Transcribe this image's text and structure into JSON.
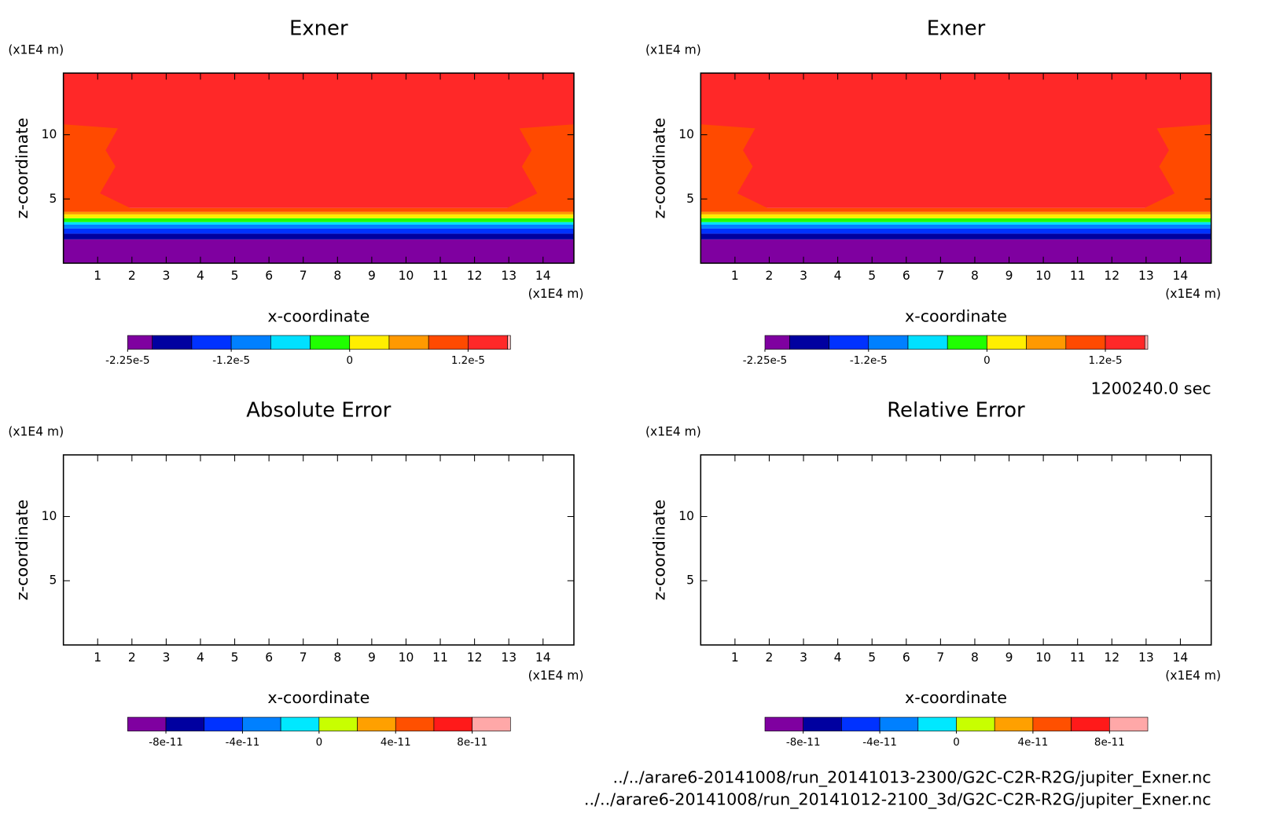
{
  "chart_data": [
    {
      "type": "contour",
      "title": "Exner",
      "x_label": "x-coordinate",
      "y_label": "z-coordinate",
      "y_unit": "(x1E4 m)",
      "x_unit": "(x1E4 m)",
      "xlim": [
        0,
        14.9
      ],
      "ylim": [
        0,
        14.8
      ],
      "xticks": [
        1,
        2,
        3,
        4,
        5,
        6,
        7,
        8,
        9,
        10,
        11,
        12,
        13,
        14
      ],
      "yticks": [
        5,
        10
      ],
      "colors": [
        "#7f00a0",
        "#0000a0",
        "#0032ff",
        "#0080ff",
        "#00e0ff",
        "#20ff00",
        "#ffee00",
        "#ff9900",
        "#ff4a00",
        "#ff2828",
        "#ffb0b0"
      ],
      "levels": [
        -2.25e-05,
        -2e-05,
        -1.6e-05,
        -1.2e-05,
        -8e-06,
        -4e-06,
        0,
        4e-06,
        8e-06,
        1.2e-05,
        1.6e-05,
        1.63e-05
      ],
      "colorbar_ticks": [
        {
          "value": -2.25e-05,
          "label": "-2.25e-5"
        },
        {
          "value": -1.2e-05,
          "label": "-1.2e-5"
        },
        0,
        {
          "value": 1.2e-05,
          "label": "1.2e-5"
        }
      ],
      "band_tops": [
        1.85,
        2.3,
        2.7,
        3.0,
        3.2,
        3.5,
        3.8,
        4.0,
        4.3,
        14.8,
        null
      ]
    },
    {
      "type": "contour",
      "title": "Exner",
      "x_label": "x-coordinate",
      "y_label": "z-coordinate",
      "y_unit": "(x1E4 m)",
      "x_unit": "(x1E4 m)",
      "xlim": [
        0,
        14.9
      ],
      "ylim": [
        0,
        14.8
      ],
      "xticks": [
        1,
        2,
        3,
        4,
        5,
        6,
        7,
        8,
        9,
        10,
        11,
        12,
        13,
        14
      ],
      "yticks": [
        5,
        10
      ],
      "colors": [
        "#7f00a0",
        "#0000a0",
        "#0032ff",
        "#0080ff",
        "#00e0ff",
        "#20ff00",
        "#ffee00",
        "#ff9900",
        "#ff4a00",
        "#ff2828",
        "#ffb0b0"
      ],
      "levels": [
        -2.25e-05,
        -2e-05,
        -1.6e-05,
        -1.2e-05,
        -8e-06,
        -4e-06,
        0,
        4e-06,
        8e-06,
        1.2e-05,
        1.6e-05,
        1.63e-05
      ],
      "colorbar_ticks": [
        {
          "value": -2.25e-05,
          "label": "-2.25e-5"
        },
        {
          "value": -1.2e-05,
          "label": "-1.2e-5"
        },
        0,
        {
          "value": 1.2e-05,
          "label": "1.2e-5"
        }
      ],
      "band_tops": [
        1.85,
        2.3,
        2.7,
        3.0,
        3.2,
        3.5,
        3.8,
        4.0,
        4.3,
        14.8,
        null
      ]
    },
    {
      "type": "contour",
      "title": "Absolute Error",
      "x_label": "x-coordinate",
      "y_label": "z-coordinate",
      "y_unit": "(x1E4 m)",
      "x_unit": "(x1E4 m)",
      "xlim": [
        0,
        14.9
      ],
      "ylim": [
        0,
        14.8
      ],
      "xticks": [
        1,
        2,
        3,
        4,
        5,
        6,
        7,
        8,
        9,
        10,
        11,
        12,
        13,
        14
      ],
      "yticks": [
        5,
        10
      ],
      "colors": [
        "#7f00a0",
        "#0000a0",
        "#0032ff",
        "#0080ff",
        "#00e8ff",
        "#c8ff00",
        "#ffa000",
        "#ff5000",
        "#ff1a1a",
        "#ffa8a8"
      ],
      "levels": [
        -1e-10,
        -8e-11,
        -6e-11,
        -4e-11,
        -2e-11,
        0,
        2e-11,
        4e-11,
        6e-11,
        8e-11,
        1e-10
      ],
      "colorbar_ticks": [
        -8e-11,
        -4e-11,
        0,
        4e-11,
        8e-11
      ]
    },
    {
      "type": "contour",
      "title": "Relative Error",
      "x_label": "x-coordinate",
      "y_label": "z-coordinate",
      "y_unit": "(x1E4 m)",
      "x_unit": "(x1E4 m)",
      "xlim": [
        0,
        14.9
      ],
      "ylim": [
        0,
        14.8
      ],
      "xticks": [
        1,
        2,
        3,
        4,
        5,
        6,
        7,
        8,
        9,
        10,
        11,
        12,
        13,
        14
      ],
      "yticks": [
        5,
        10
      ],
      "colors": [
        "#7f00a0",
        "#0000a0",
        "#0032ff",
        "#0080ff",
        "#00e8ff",
        "#c8ff00",
        "#ffa000",
        "#ff5000",
        "#ff1a1a",
        "#ffa8a8"
      ],
      "levels": [
        -1e-10,
        -8e-11,
        -6e-11,
        -4e-11,
        -2e-11,
        0,
        2e-11,
        4e-11,
        6e-11,
        8e-11,
        1e-10
      ],
      "colorbar_ticks": [
        -8e-11,
        -4e-11,
        0,
        4e-11,
        8e-11
      ]
    }
  ],
  "time": "1200240.0 sec",
  "files": [
    "../../arare6-20141008/run_20141013-2300/G2C-C2R-R2G/jupiter_Exner.nc",
    "../../arare6-20141008/run_20141012-2100_3d/G2C-C2R-R2G/jupiter_Exner.nc"
  ]
}
